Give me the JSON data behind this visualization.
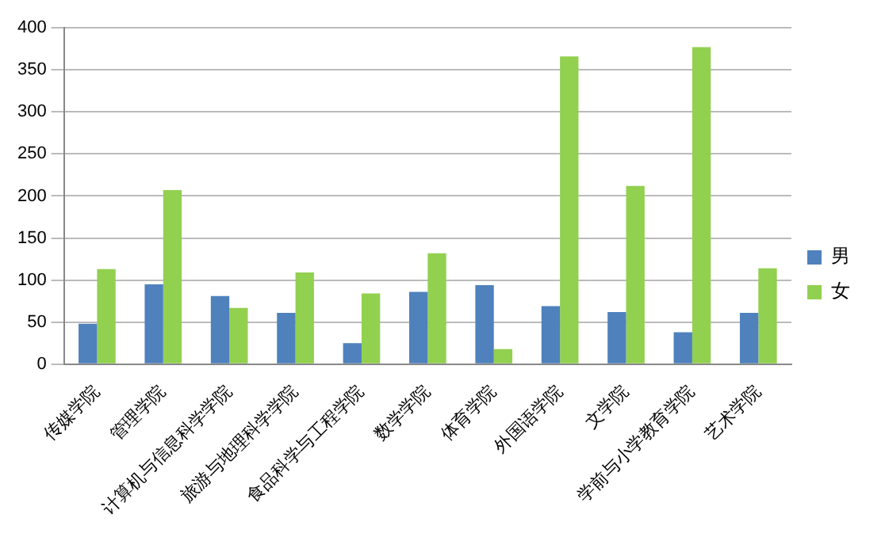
{
  "chart_data": {
    "type": "bar",
    "categories": [
      "传媒学院",
      "管理学院",
      "计算机与信息科学学院",
      "旅游与地理科学学院",
      "食品科学与工程学院",
      "数学学院",
      "体育学院",
      "外国语学院",
      "文学院",
      "学前与小学教育学院",
      "艺术学院"
    ],
    "series": [
      {
        "name": "男",
        "color": "#4f81bd",
        "values": [
          48,
          95,
          81,
          61,
          25,
          86,
          94,
          69,
          62,
          38,
          61
        ]
      },
      {
        "name": "女",
        "color": "#92d050",
        "values": [
          113,
          207,
          67,
          109,
          84,
          132,
          18,
          366,
          212,
          377,
          114
        ]
      }
    ],
    "ylim": [
      0,
      400
    ],
    "yticks": [
      0,
      50,
      100,
      150,
      200,
      250,
      300,
      350,
      400
    ],
    "grid": "y",
    "legend": "right"
  }
}
